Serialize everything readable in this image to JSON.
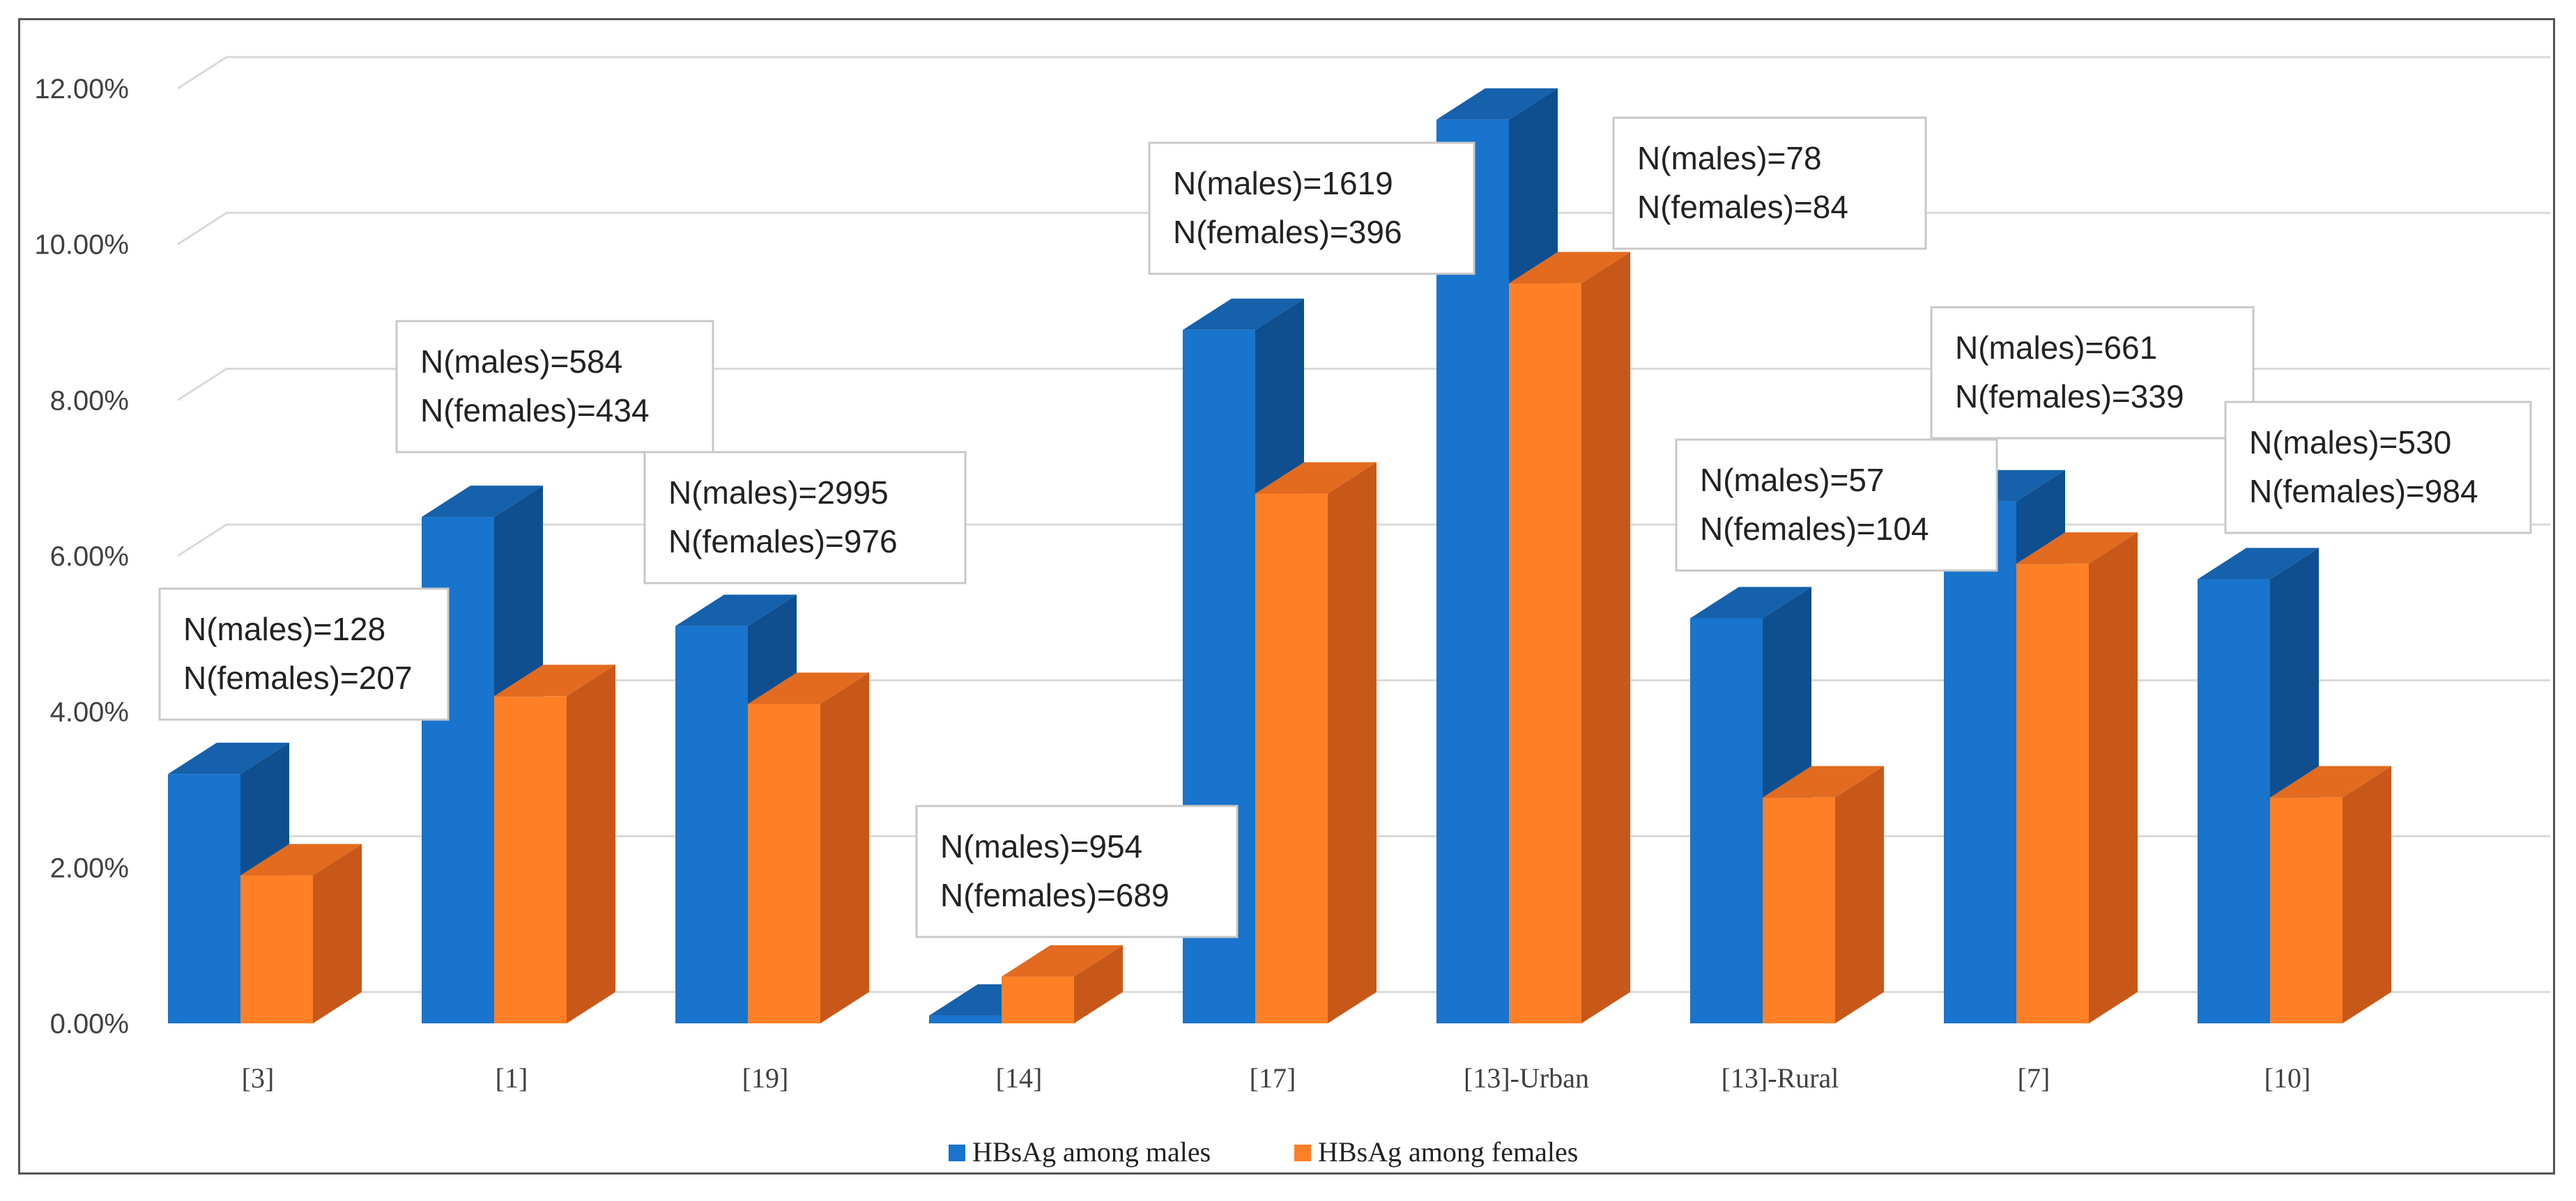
{
  "chart_data": {
    "type": "bar",
    "title": "",
    "xlabel": "",
    "ylabel": "",
    "ylim": [
      0,
      0.12
    ],
    "y_tick_values": [
      0,
      0.02,
      0.04,
      0.06,
      0.08,
      0.1,
      0.12
    ],
    "y_tick_labels": [
      "0.00%",
      "2.00%",
      "4.00%",
      "6.00%",
      "8.00%",
      "10.00%",
      "12.00%"
    ],
    "grid": true,
    "legend_position": "bottom",
    "categories": [
      "[3]",
      "[1]",
      "[19]",
      "[14]",
      "[17]",
      "[13]-Urban",
      "[13]-Rural",
      "[7]",
      "[10]"
    ],
    "series": [
      {
        "name": "HBsAg among males",
        "color": "#1874cd",
        "side_color": "#0f4f8f",
        "top_color": "#1561ab",
        "values": [
          0.032,
          0.065,
          0.051,
          0.001,
          0.089,
          0.116,
          0.052,
          0.067,
          0.057
        ]
      },
      {
        "name": "HBsAg among females",
        "color": "#ff7f27",
        "side_color": "#c8581a",
        "top_color": "#e26b1f",
        "values": [
          0.019,
          0.042,
          0.041,
          0.006,
          0.068,
          0.095,
          0.029,
          0.059,
          0.029
        ]
      }
    ],
    "annotations": [
      {
        "category": "[3]",
        "males": "N(males)=128",
        "females": "N(females)=207"
      },
      {
        "category": "[1]",
        "males": "N(males)=584",
        "females": "N(females)=434"
      },
      {
        "category": "[19]",
        "males": "N(males)=2995",
        "females": "N(females)=976"
      },
      {
        "category": "[14]",
        "males": "N(males)=954",
        "females": "N(females)=689"
      },
      {
        "category": "[17]",
        "males": "N(males)=1619",
        "females": "N(females)=396"
      },
      {
        "category": "[13]-Urban",
        "males": "N(males)=78",
        "females": "N(females)=84"
      },
      {
        "category": "[13]-Rural",
        "males": "N(males)=57",
        "females": "N(females)=104"
      },
      {
        "category": "[7]",
        "males": "N(males)=661",
        "females": "N(females)=339"
      },
      {
        "category": "[10]",
        "males": "N(males)=530",
        "females": "N(females)=984"
      }
    ]
  }
}
